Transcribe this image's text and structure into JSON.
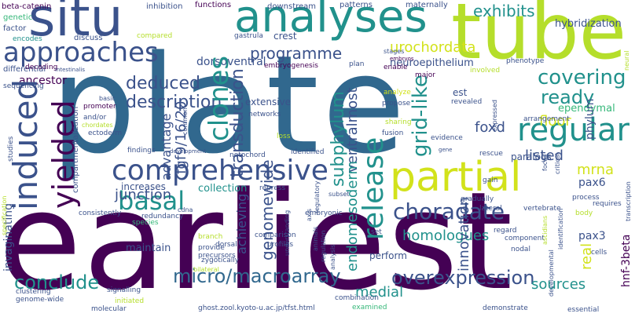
{
  "palette": {
    "background": "#ffffff",
    "deep_purple": "#440154",
    "indigo": "#3b528b",
    "blue": "#31688e",
    "teal": "#21918c",
    "green": "#35b779",
    "lime": "#b5de2b",
    "light_lime": "#d2e21b"
  },
  "words": {
    "earliest": "earliest",
    "plate": "plate",
    "tube": "tube",
    "analyses": "analyses",
    "situ": "situ",
    "partial": "partial",
    "comprehensive": "comprehensive",
    "regular": "regular",
    "approaches": "approaches",
    "induced": "induced",
    "yielded": "yielded",
    "release": "release",
    "clones": "clones",
    "basal": "basal",
    "choradate": "choradate",
    "micro_macroarray": "micro/macroarray",
    "overexpression": "overexpression",
    "conclude": "conclude",
    "deduced": "deduced",
    "description": "description",
    "programme": "programme",
    "fgf9_16_20": "fgf9/16/20",
    "advantage": "advantage",
    "grid_like": "grid-like",
    "covering": "covering",
    "ready": "ready",
    "exhibits": "exhibits",
    "urochordata": "urochordata",
    "neuroepithelium": "neuroepithelium",
    "hybridization": "hybridization",
    "transduction": "transduction",
    "subphylum": "subphylum",
    "ventralmost": "ventralmost",
    "junction": "junction",
    "mrna": "mrna",
    "listed": "listed",
    "foxd": "foxd",
    "floor": "floor",
    "genomewide": "genomewide",
    "endomesoderm": "endomesoderm",
    "innovation": "innovation",
    "homologues": "homologues",
    "medial": "medial",
    "sources": "sources",
    "pax6": "pax6",
    "pax3": "pax3",
    "real": "real",
    "hnf_3beta": "hnf-3beta",
    "ependymal": "ependymal",
    "dorsoventral": "dorsoventral",
    "ancestor": "ancestor",
    "collection": "collection",
    "increases": "increases",
    "perform": "perform",
    "maintain": "maintain",
    "achieving": "achieving",
    "extensive": "extensive",
    "invaginating": "invaginating",
    "paralogs": "paralogs",
    "phylum": "phylum",
    "beta_catenin": "beta-catenin",
    "inhibition": "inhibition",
    "functions": "functions",
    "downstream": "downstream",
    "patterns": "patterns",
    "maternally": "maternally",
    "genetic": "genetic",
    "factor": "factor",
    "encodes": "encodes",
    "discuss": "discuss",
    "compared": "compared",
    "gastrula": "gastrula",
    "crest": "crest",
    "differential": "differential",
    "sequencing": "sequencing",
    "decoding": "decoding",
    "intestinalis": "intestinalis",
    "embryogenesis": "embryogenesis",
    "embryos": "embryos",
    "stages": "stages",
    "plan": "plan",
    "enable": "enable",
    "major": "major",
    "involved": "involved",
    "phenotype": "phenotype",
    "neural": "neural",
    "basic": "basic",
    "promoter": "promoter",
    "and_or": "and/or",
    "chordates": "chordates",
    "ectoderm": "ectoderm",
    "compartmentalization": "compartmentalization",
    "common": "common",
    "networks": "networks",
    "propose": "propose",
    "analyze": "analyze",
    "est": "est",
    "revealed": "revealed",
    "expressed": "expressed",
    "arrangement": "arrangement",
    "sharing": "sharing",
    "fusion": "fusion",
    "evidence": "evidence",
    "loss": "loss",
    "findings": "findings",
    "development": "development",
    "notochord": "notochord",
    "identified": "identified",
    "studies": "studies",
    "gene": "gene",
    "rescue": "rescue",
    "critical": "critical",
    "focus": "focus",
    "gain": "gain",
    "specification": "specification",
    "consistently": "consistently",
    "cdna": "cdna",
    "redundancy": "redundancy",
    "repress": "repress",
    "subset": "subset",
    "regulatory": "regulatory",
    "understanding": "understanding",
    "axis": "axis",
    "embryonic": "embryonic",
    "gradually": "gradually",
    "lateral": "lateral",
    "vertebrate": "vertebrate",
    "process": "process",
    "requires": "requires",
    "transcription": "transcription",
    "identification": "identification",
    "body": "body",
    "ascidians": "ascidians",
    "regard": "regard",
    "species": "species",
    "branch": "branch",
    "animals": "animals",
    "comparison": "comparison",
    "set": "set",
    "component": "component",
    "cells": "cells",
    "dorsal": "dorsal",
    "provide": "provide",
    "precursors": "precursors",
    "profiles": "profiles",
    "regulation": "regulation",
    "analysis": "analysis",
    "nodal": "nodal",
    "clustering": "clustering",
    "signalling": "signalling",
    "zygotically": "zygotically",
    "genome_wide": "genome-wide",
    "bilateral": "bilateral",
    "examined": "examined",
    "initiated": "initiated",
    "combination": "combination",
    "molecular": "molecular",
    "url": "ghost.zool.kyoto-u.ac.jp/tfst.html",
    "demonstrate": "demonstrate",
    "essential": "essential",
    "developmental": "developmental"
  }
}
